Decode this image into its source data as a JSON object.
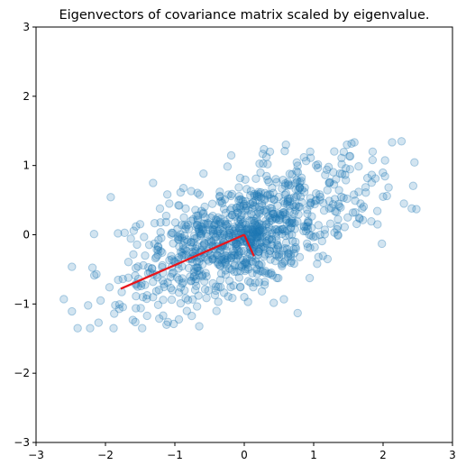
{
  "chart_data": {
    "type": "scatter",
    "title": "Eigenvectors of covariance matrix scaled by eigenvalue.",
    "xlabel": "",
    "ylabel": "",
    "xlim": [
      -3,
      3
    ],
    "ylim": [
      -3,
      3
    ],
    "x_ticks": [
      -3,
      -2,
      -1,
      0,
      1,
      2,
      3
    ],
    "y_ticks": [
      -3,
      -2,
      -1,
      0,
      1,
      2,
      3
    ],
    "grid": false,
    "point_color": "#1f77b4",
    "point_alpha": 0.2,
    "vector_color": "#e8151b",
    "eigenvectors": [
      {
        "from": [
          0,
          0
        ],
        "to": [
          -1.78,
          -0.78
        ]
      },
      {
        "from": [
          0,
          0
        ],
        "to": [
          0.14,
          -0.31
        ]
      }
    ],
    "points_summary": {
      "count": 1000,
      "mean": [
        0,
        0
      ],
      "std": [
        0.82,
        0.5
      ],
      "correlation": 0.62
    },
    "outliers": [
      [
        -2.6,
        -0.93
      ],
      [
        -2.25,
        -1.02
      ],
      [
        -2.1,
        -1.27
      ],
      [
        -2.13,
        -0.57
      ],
      [
        -2.07,
        -0.95
      ],
      [
        -1.82,
        0.02
      ],
      [
        -1.56,
        0.12
      ],
      [
        -1.48,
        -0.7
      ],
      [
        -1.46,
        -0.9
      ],
      [
        -1.4,
        -1.17
      ],
      [
        -1.1,
        -1.26
      ],
      [
        -1.08,
        0.45
      ],
      [
        -0.9,
        0.14
      ],
      [
        -0.4,
        -1.1
      ],
      [
        -0.06,
        0.82
      ],
      [
        0.0,
        -0.9
      ],
      [
        0.37,
        1.2
      ],
      [
        0.6,
        1.3
      ],
      [
        0.95,
        1.2
      ],
      [
        1.2,
        -0.35
      ],
      [
        1.05,
        -0.42
      ],
      [
        1.48,
        1.3
      ],
      [
        1.7,
        0.38
      ],
      [
        1.85,
        1.2
      ],
      [
        2.0,
        0.55
      ],
      [
        2.3,
        0.45
      ],
      [
        2.48,
        0.37
      ],
      [
        1.92,
        0.15
      ],
      [
        1.58,
        0.58
      ],
      [
        0.3,
        -0.55
      ]
    ]
  }
}
